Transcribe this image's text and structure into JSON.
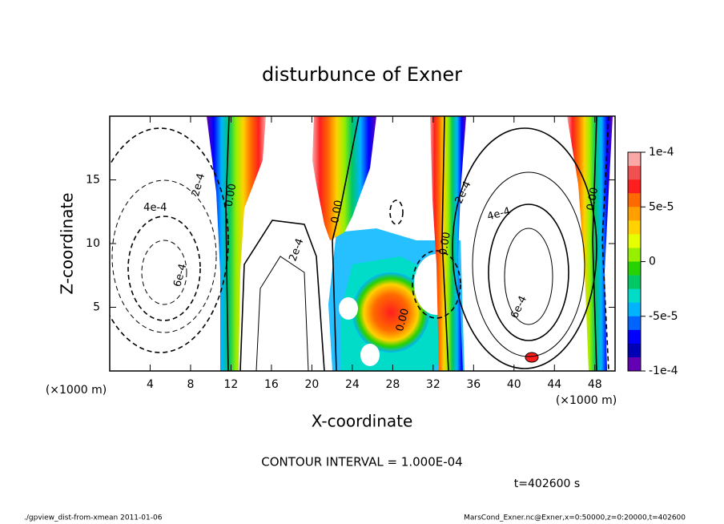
{
  "chart_data": {
    "type": "contour",
    "title": "disturbunce of Exner",
    "x_label": "X-coordinate",
    "y_label": "Z-coordinate",
    "x_unit": "(×1000 m)",
    "x_unit_right": "(×1000 m)",
    "xlim": [
      0,
      50
    ],
    "xticks": [
      4,
      8,
      12,
      16,
      20,
      24,
      28,
      32,
      36,
      40,
      44,
      48
    ],
    "ylim": [
      0,
      20
    ],
    "yticks": [
      5,
      10,
      15
    ],
    "colorbar": {
      "lim": [
        -0.0001,
        0.0001
      ],
      "ticks": [
        {
          "value": 0.0001,
          "label": "1e-4"
        },
        {
          "value": 5e-05,
          "label": "5e-5"
        },
        {
          "value": 0,
          "label": "0"
        },
        {
          "value": -5e-05,
          "label": "-5e-5"
        },
        {
          "value": -0.0001,
          "label": "-1e-4"
        }
      ],
      "colors": [
        "#f9a7a7",
        "#f05050",
        "#ff1e1e",
        "#ff6a00",
        "#ffa000",
        "#ffd200",
        "#e6ff00",
        "#96f000",
        "#28d200",
        "#00c864",
        "#00dcc8",
        "#00b4ff",
        "#0064ff",
        "#0000ff",
        "#0000b4",
        "#6400b4"
      ]
    },
    "contour_labels": [
      {
        "text": "2e-4",
        "x": 8.8,
        "y": 14.6
      },
      {
        "text": "4e-4",
        "x": 4.5,
        "y": 12.8
      },
      {
        "text": "6e-4",
        "x": 7.0,
        "y": 7.5
      },
      {
        "text": "0.00",
        "x": 12.0,
        "y": 13.8
      },
      {
        "text": "2e-4",
        "x": 18.5,
        "y": 9.5
      },
      {
        "text": "0.00",
        "x": 22.5,
        "y": 12.5
      },
      {
        "text": "0.00",
        "x": 29.0,
        "y": 4.0
      },
      {
        "text": "2e-4",
        "x": 35.0,
        "y": 14.0
      },
      {
        "text": "0.00",
        "x": 33.2,
        "y": 10.0
      },
      {
        "text": "4e-4",
        "x": 38.5,
        "y": 12.3
      },
      {
        "text": "6e-4",
        "x": 40.5,
        "y": 5.0
      },
      {
        "text": "0.00",
        "x": 47.8,
        "y": 13.5
      }
    ],
    "contour_interval": "CONTOUR INTERVAL = 1.000E-04",
    "time_label": "t=402600 s",
    "footer_left": "./gpview_dist-from-xmean  2011-01-06",
    "footer_right": "MarsCond_Exner.nc@Exner,x=0:50000,z=0:20000,t=402600"
  }
}
